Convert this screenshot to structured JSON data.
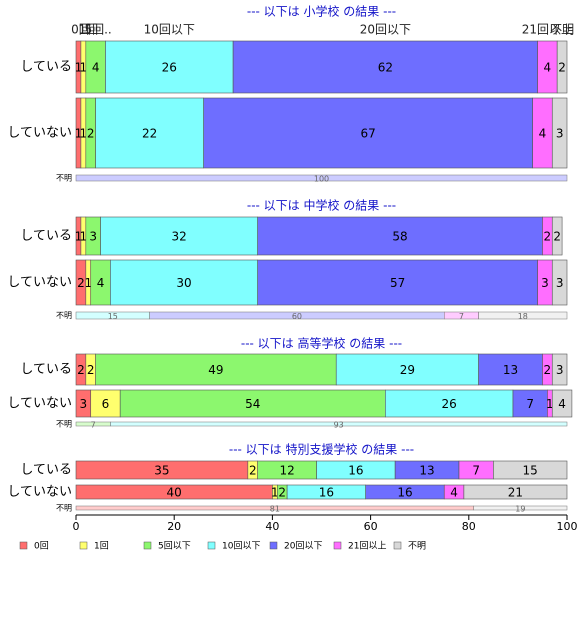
{
  "chart_data": {
    "type": "bar",
    "orientation": "horizontal",
    "stacked": true,
    "xlim": [
      0,
      100
    ],
    "x_ticks": [
      0,
      20,
      40,
      60,
      80,
      100
    ],
    "grid": false,
    "legend_position": "bottom-left",
    "series": [
      {
        "name": "0回",
        "color": "#FF6E6E"
      },
      {
        "name": "1回",
        "color": "#FFFF6E"
      },
      {
        "name": "5回以下",
        "color": "#8CF76E"
      },
      {
        "name": "10回以下",
        "color": "#80FFFF"
      },
      {
        "name": "20回以下",
        "color": "#6E6EFF"
      },
      {
        "name": "21回以上",
        "color": "#FF6EFF"
      },
      {
        "name": "不明",
        "color": "#D8D8D8"
      }
    ],
    "panels": [
      {
        "title": "--- 以下は 小学校 の結果 ---",
        "top_labels": [
          {
            "text": "0回",
            "x": 1
          },
          {
            "text": "1回",
            "x": 2.5
          },
          {
            "text": "5回..",
            "x": 4.5
          },
          {
            "text": "10回以下",
            "x": 19
          },
          {
            "text": "20回以下",
            "x": 63
          },
          {
            "text": "21回以上",
            "x": 96
          },
          {
            "text": "不明",
            "x": 99
          }
        ],
        "rows": [
          {
            "label": "している",
            "values": [
              1,
              1,
              4,
              26,
              62,
              4,
              2
            ]
          },
          {
            "label": "していない",
            "values": [
              1,
              1,
              2,
              22,
              67,
              4,
              3
            ]
          }
        ],
        "unknown": {
          "label": "不明",
          "values": [
            0,
            0,
            0,
            0,
            100,
            0,
            0
          ]
        }
      },
      {
        "title": "--- 以下は 中学校 の結果 ---",
        "rows": [
          {
            "label": "している",
            "values": [
              1,
              1,
              3,
              32,
              58,
              2,
              2
            ]
          },
          {
            "label": "していない",
            "values": [
              2,
              1,
              4,
              30,
              57,
              3,
              3
            ]
          }
        ],
        "unknown": {
          "label": "不明",
          "values": [
            0,
            0,
            0,
            15,
            60,
            7,
            18
          ]
        }
      },
      {
        "title": "--- 以下は 高等学校 の結果 ---",
        "rows": [
          {
            "label": "している",
            "values": [
              2,
              2,
              49,
              29,
              13,
              2,
              3
            ]
          },
          {
            "label": "していない",
            "values": [
              3,
              6,
              54,
              26,
              7,
              1,
              4
            ]
          }
        ],
        "unknown": {
          "label": "不明",
          "values": [
            0,
            0,
            7,
            93,
            0,
            0,
            0
          ]
        }
      },
      {
        "title": "--- 以下は 特別支援学校 の結果 ---",
        "rows": [
          {
            "label": "している",
            "values": [
              35,
              2,
              12,
              16,
              13,
              7,
              15
            ]
          },
          {
            "label": "していない",
            "values": [
              40,
              1,
              2,
              16,
              16,
              4,
              21
            ]
          }
        ],
        "unknown": {
          "label": "不明",
          "values": [
            81,
            0,
            0,
            0,
            0,
            0,
            19
          ]
        }
      }
    ]
  }
}
